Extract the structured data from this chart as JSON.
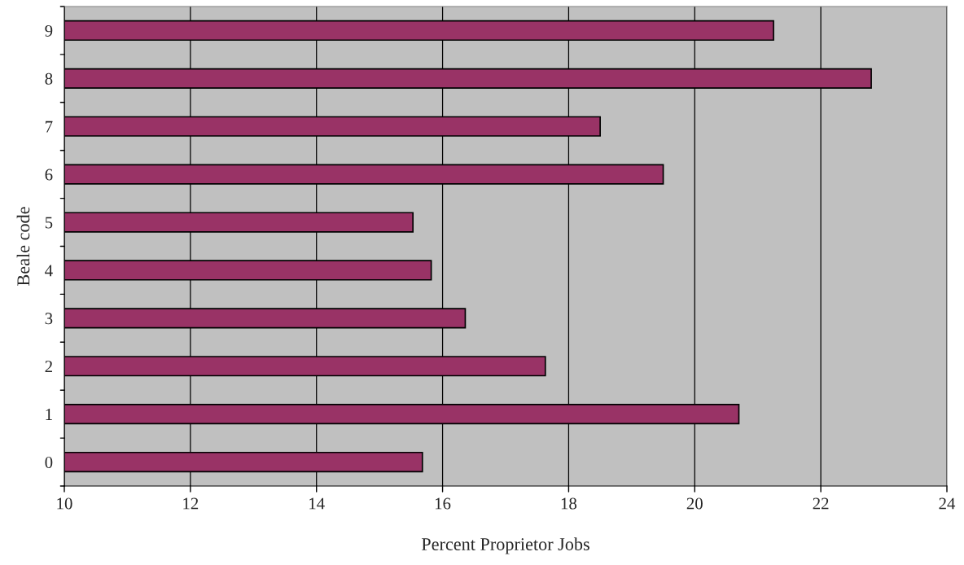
{
  "chart_data": {
    "type": "bar",
    "orientation": "horizontal",
    "xlabel": "Percent Proprietor Jobs",
    "ylabel": "Beale code",
    "categories": [
      "9",
      "8",
      "7",
      "6",
      "5",
      "4",
      "3",
      "2",
      "1",
      "0"
    ],
    "values": [
      21.25,
      22.8,
      18.5,
      19.5,
      15.53,
      15.82,
      16.36,
      17.63,
      20.7,
      15.68
    ],
    "color": "#993366",
    "xlim": [
      10,
      24
    ],
    "xticks": [
      10,
      12,
      14,
      16,
      18,
      20,
      22,
      24
    ],
    "grid": "x"
  }
}
